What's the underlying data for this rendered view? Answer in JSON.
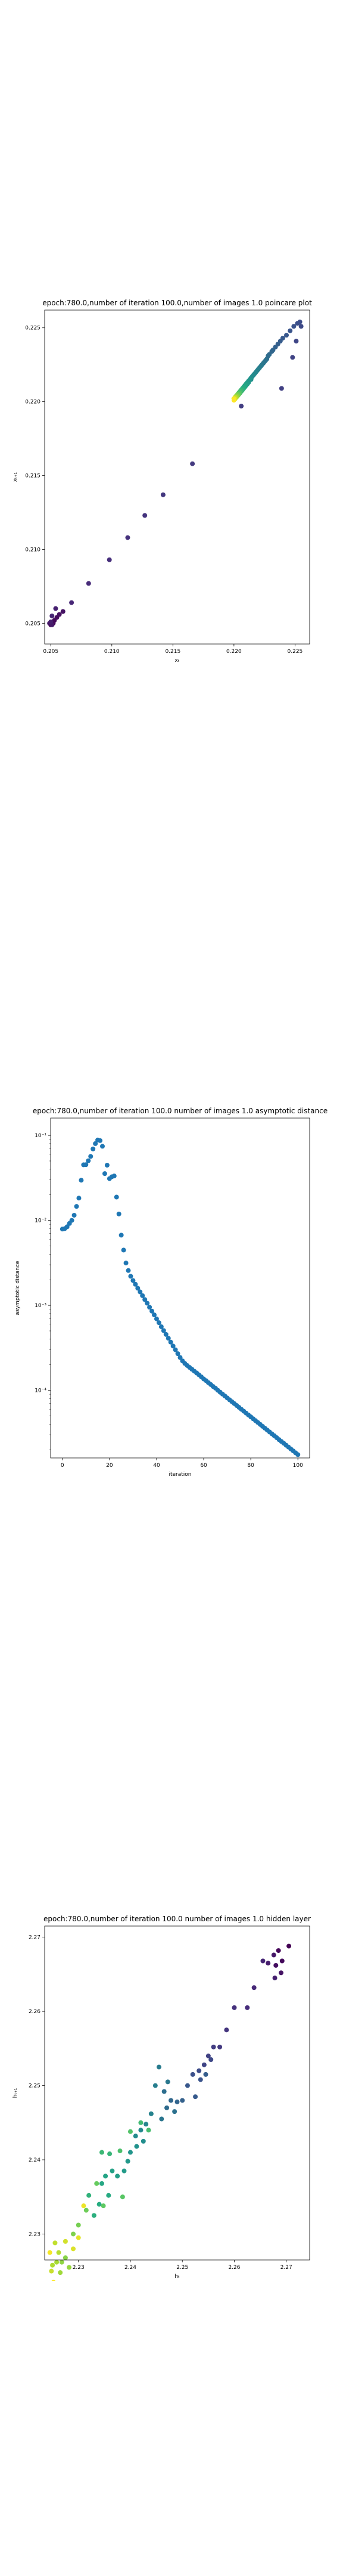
{
  "figure": {
    "background": "#ffffff"
  },
  "chart_data": [
    {
      "type": "scatter",
      "title": "epoch:780.0,number of iteration 100.0,number of images 1.0 poincare plot",
      "xlabel": "xₜ",
      "ylabel": "xₜ₊₁",
      "xlim": [
        0.2045,
        0.2262
      ],
      "ylim": [
        0.2036,
        0.2262
      ],
      "xticks": [
        0.205,
        0.21,
        0.215,
        0.22,
        0.225
      ],
      "yticks": [
        0.205,
        0.21,
        0.215,
        0.22,
        0.225
      ],
      "xtick_labels": [
        "0.205",
        "0.210",
        "0.215",
        "0.220",
        "0.225"
      ],
      "ytick_labels": [
        "0.205",
        "0.210",
        "0.215",
        "0.220",
        "0.225"
      ],
      "colormap": "viridis",
      "color_by": "iteration",
      "grid": false,
      "points": [
        {
          "x": 0.205,
          "y": 0.2049
        },
        {
          "x": 0.2052,
          "y": 0.205
        },
        {
          "x": 0.2053,
          "y": 0.2052
        },
        {
          "x": 0.2055,
          "y": 0.2054
        },
        {
          "x": 0.2057,
          "y": 0.2056
        },
        {
          "x": 0.206,
          "y": 0.2058
        },
        {
          "x": 0.2049,
          "y": 0.205
        },
        {
          "x": 0.2051,
          "y": 0.2049
        },
        {
          "x": 0.205,
          "y": 0.2051
        },
        {
          "x": 0.2054,
          "y": 0.206
        },
        {
          "x": 0.2051,
          "y": 0.2055
        },
        {
          "x": 0.2067,
          "y": 0.2064
        },
        {
          "x": 0.2081,
          "y": 0.2077
        },
        {
          "x": 0.2098,
          "y": 0.2093
        },
        {
          "x": 0.2113,
          "y": 0.2108
        },
        {
          "x": 0.2127,
          "y": 0.2123
        },
        {
          "x": 0.2142,
          "y": 0.2137
        },
        {
          "x": 0.2166,
          "y": 0.2158
        },
        {
          "x": 0.2206,
          "y": 0.2197
        },
        {
          "x": 0.2239,
          "y": 0.2209
        },
        {
          "x": 0.2248,
          "y": 0.223
        },
        {
          "x": 0.2251,
          "y": 0.2241
        },
        {
          "x": 0.2255,
          "y": 0.2251
        },
        {
          "x": 0.2254,
          "y": 0.2254
        },
        {
          "x": 0.2252,
          "y": 0.2253
        },
        {
          "x": 0.2249,
          "y": 0.2251
        },
        {
          "x": 0.2246,
          "y": 0.2248
        },
        {
          "x": 0.2243,
          "y": 0.2245
        },
        {
          "x": 0.224,
          "y": 0.2243
        },
        {
          "x": 0.2238,
          "y": 0.2241
        },
        {
          "x": 0.2236,
          "y": 0.2239
        },
        {
          "x": 0.2234,
          "y": 0.2237
        },
        {
          "x": 0.2232,
          "y": 0.2235
        },
        {
          "x": 0.2231,
          "y": 0.2234
        },
        {
          "x": 0.2229,
          "y": 0.2232
        },
        {
          "x": 0.2228,
          "y": 0.2231
        },
        {
          "x": 0.2227,
          "y": 0.2229
        },
        {
          "x": 0.2226,
          "y": 0.2228
        },
        {
          "x": 0.2225,
          "y": 0.2227
        },
        {
          "x": 0.2224,
          "y": 0.2226
        },
        {
          "x": 0.2223,
          "y": 0.2225
        },
        {
          "x": 0.2222,
          "y": 0.2224
        },
        {
          "x": 0.2221,
          "y": 0.2223
        },
        {
          "x": 0.222,
          "y": 0.2222
        },
        {
          "x": 0.2219,
          "y": 0.2221
        },
        {
          "x": 0.2218,
          "y": 0.222
        },
        {
          "x": 0.2217,
          "y": 0.2219
        },
        {
          "x": 0.2216,
          "y": 0.2218
        },
        {
          "x": 0.2215,
          "y": 0.2217
        },
        {
          "x": 0.2214,
          "y": 0.2216
        },
        {
          "x": 0.2214,
          "y": 0.2215
        },
        {
          "x": 0.2213,
          "y": 0.2215
        },
        {
          "x": 0.2212,
          "y": 0.2214
        },
        {
          "x": 0.2212,
          "y": 0.2213
        },
        {
          "x": 0.2211,
          "y": 0.2213
        },
        {
          "x": 0.2211,
          "y": 0.2212
        },
        {
          "x": 0.221,
          "y": 0.2212
        },
        {
          "x": 0.221,
          "y": 0.2211
        },
        {
          "x": 0.2209,
          "y": 0.2211
        },
        {
          "x": 0.2209,
          "y": 0.221
        },
        {
          "x": 0.2208,
          "y": 0.221
        },
        {
          "x": 0.2208,
          "y": 0.2209
        },
        {
          "x": 0.2207,
          "y": 0.2209
        },
        {
          "x": 0.2207,
          "y": 0.2208
        },
        {
          "x": 0.2207,
          "y": 0.2208
        },
        {
          "x": 0.2206,
          "y": 0.2208
        },
        {
          "x": 0.2206,
          "y": 0.2207
        },
        {
          "x": 0.2206,
          "y": 0.2207
        },
        {
          "x": 0.2205,
          "y": 0.2207
        },
        {
          "x": 0.2205,
          "y": 0.2206
        },
        {
          "x": 0.2205,
          "y": 0.2206
        },
        {
          "x": 0.2205,
          "y": 0.2206
        },
        {
          "x": 0.2204,
          "y": 0.2206
        },
        {
          "x": 0.2204,
          "y": 0.2205
        },
        {
          "x": 0.2204,
          "y": 0.2205
        },
        {
          "x": 0.2204,
          "y": 0.2205
        },
        {
          "x": 0.2203,
          "y": 0.2205
        },
        {
          "x": 0.2203,
          "y": 0.2205
        },
        {
          "x": 0.2203,
          "y": 0.2204
        },
        {
          "x": 0.2203,
          "y": 0.2204
        },
        {
          "x": 0.2203,
          "y": 0.2204
        },
        {
          "x": 0.2202,
          "y": 0.2204
        },
        {
          "x": 0.2202,
          "y": 0.2204
        },
        {
          "x": 0.2202,
          "y": 0.2204
        },
        {
          "x": 0.2202,
          "y": 0.2203
        },
        {
          "x": 0.2202,
          "y": 0.2203
        },
        {
          "x": 0.2202,
          "y": 0.2203
        },
        {
          "x": 0.2201,
          "y": 0.2203
        },
        {
          "x": 0.2201,
          "y": 0.2203
        },
        {
          "x": 0.2201,
          "y": 0.2203
        },
        {
          "x": 0.2201,
          "y": 0.2203
        },
        {
          "x": 0.2201,
          "y": 0.2202
        },
        {
          "x": 0.2201,
          "y": 0.2202
        },
        {
          "x": 0.2201,
          "y": 0.2202
        },
        {
          "x": 0.22,
          "y": 0.2202
        },
        {
          "x": 0.22,
          "y": 0.2202
        },
        {
          "x": 0.22,
          "y": 0.2202
        },
        {
          "x": 0.22,
          "y": 0.2202
        },
        {
          "x": 0.22,
          "y": 0.2202
        },
        {
          "x": 0.22,
          "y": 0.2201
        }
      ]
    },
    {
      "type": "scatter",
      "title": "epoch:780.0,number of iteration 100.0  number of images 1.0 asymptotic distance",
      "xlabel": "iteration",
      "ylabel": "asymptotic distance",
      "yscale": "log",
      "xlim": [
        -5,
        105
      ],
      "ylim": [
        1.6e-05,
        0.16
      ],
      "xticks": [
        0,
        20,
        40,
        60,
        80,
        100
      ],
      "xtick_labels": [
        "0",
        "20",
        "40",
        "60",
        "80",
        "100"
      ],
      "yticks": [
        0.0001,
        0.001,
        0.01,
        0.1
      ],
      "ytick_labels": [
        "10⁻⁴",
        "10⁻³",
        "10⁻²",
        "10⁻¹"
      ],
      "color": "#1f77b4",
      "grid": false,
      "x": [
        0,
        1,
        2,
        3,
        4,
        5,
        6,
        7,
        8,
        9,
        10,
        11,
        12,
        13,
        14,
        15,
        16,
        17,
        18,
        19,
        20,
        21,
        22,
        23,
        24,
        25,
        26,
        27,
        28,
        29,
        30,
        31,
        32,
        33,
        34,
        35,
        36,
        37,
        38,
        39,
        40,
        41,
        42,
        43,
        44,
        45,
        46,
        47,
        48,
        49,
        50,
        51,
        52,
        53,
        54,
        55,
        56,
        57,
        58,
        59,
        60,
        61,
        62,
        63,
        64,
        65,
        66,
        67,
        68,
        69,
        70,
        71,
        72,
        73,
        74,
        75,
        76,
        77,
        78,
        79,
        80,
        81,
        82,
        83,
        84,
        85,
        86,
        87,
        88,
        89,
        90,
        91,
        92,
        93,
        94,
        95,
        96,
        97,
        98,
        99,
        100
      ],
      "y": [
        0.0079,
        0.008,
        0.0084,
        0.0092,
        0.01,
        0.0115,
        0.0146,
        0.0183,
        0.0297,
        0.0451,
        0.0452,
        0.0503,
        0.0566,
        0.0693,
        0.08,
        0.0883,
        0.0869,
        0.0745,
        0.0355,
        0.0446,
        0.031,
        0.0326,
        0.0333,
        0.0188,
        0.0119,
        0.0067,
        0.00447,
        0.00315,
        0.00257,
        0.0022,
        0.00196,
        0.00177,
        0.00159,
        0.00144,
        0.0013,
        0.00117,
        0.00106,
        0.00095,
        0.000856,
        0.000772,
        0.000694,
        0.000625,
        0.00056,
        0.000505,
        0.000455,
        0.00041,
        0.000369,
        0.000332,
        0.0003,
        0.00027,
        0.000243,
        0.000222,
        0.000207,
        0.000196,
        0.000186,
        0.000177,
        0.000168,
        0.00016,
        0.000152,
        0.000144,
        0.000136,
        0.00013,
        0.000123,
        0.000117,
        0.000111,
        0.000106,
        0.0001,
        9.5e-05,
        9.02e-05,
        8.57e-05,
        8.14e-05,
        7.73e-05,
        7.34e-05,
        6.98e-05,
        6.63e-05,
        6.3e-05,
        5.98e-05,
        5.68e-05,
        5.4e-05,
        5.13e-05,
        4.87e-05,
        4.63e-05,
        4.4e-05,
        4.18e-05,
        3.97e-05,
        3.77e-05,
        3.58e-05,
        3.4e-05,
        3.23e-05,
        3.07e-05,
        2.92e-05,
        2.77e-05,
        2.63e-05,
        2.5e-05,
        2.38e-05,
        2.26e-05,
        2.15e-05,
        2.04e-05,
        1.94e-05,
        1.84e-05,
        1.75e-05
      ]
    },
    {
      "type": "scatter",
      "title": "epoch:780.0,number of iteration 100.0  number of images 1.0 hidden layer",
      "xlabel": "hₜ",
      "ylabel": "hₜ₊₁",
      "xlim": [
        2.2235,
        2.2745
      ],
      "ylim": [
        2.2265,
        2.2715
      ],
      "xticks": [
        2.23,
        2.24,
        2.25,
        2.26,
        2.27
      ],
      "yticks": [
        2.23,
        2.24,
        2.25,
        2.26,
        2.27
      ],
      "xtick_labels": [
        "2.23",
        "2.24",
        "2.25",
        "2.26",
        "2.27"
      ],
      "ytick_labels": [
        "2.23",
        "2.24",
        "2.25",
        "2.26",
        "2.27"
      ],
      "colormap": "viridis",
      "color_by": "iteration",
      "grid": false,
      "points": [
        {
          "x": 2.2705,
          "y": 2.2688
        },
        {
          "x": 2.2685,
          "y": 2.2682
        },
        {
          "x": 2.2692,
          "y": 2.2668
        },
        {
          "x": 2.268,
          "y": 2.2662
        },
        {
          "x": 2.269,
          "y": 2.2652
        },
        {
          "x": 2.2676,
          "y": 2.2676
        },
        {
          "x": 2.2665,
          "y": 2.2665
        },
        {
          "x": 2.2678,
          "y": 2.2645
        },
        {
          "x": 2.2655,
          "y": 2.2668
        },
        {
          "x": 2.2638,
          "y": 2.2632
        },
        {
          "x": 2.2625,
          "y": 2.2605
        },
        {
          "x": 2.26,
          "y": 2.2605
        },
        {
          "x": 2.2585,
          "y": 2.2575
        },
        {
          "x": 2.2572,
          "y": 2.2552
        },
        {
          "x": 2.256,
          "y": 2.2552
        },
        {
          "x": 2.255,
          "y": 2.254
        },
        {
          "x": 2.2542,
          "y": 2.2528
        },
        {
          "x": 2.2555,
          "y": 2.2535
        },
        {
          "x": 2.2532,
          "y": 2.252
        },
        {
          "x": 2.252,
          "y": 2.2515
        },
        {
          "x": 2.2535,
          "y": 2.2508
        },
        {
          "x": 2.251,
          "y": 2.25
        },
        {
          "x": 2.2525,
          "y": 2.2485
        },
        {
          "x": 2.2545,
          "y": 2.2515
        },
        {
          "x": 2.25,
          "y": 2.248
        },
        {
          "x": 2.249,
          "y": 2.2478
        },
        {
          "x": 2.2478,
          "y": 2.248
        },
        {
          "x": 2.247,
          "y": 2.247
        },
        {
          "x": 2.2465,
          "y": 2.2492
        },
        {
          "x": 2.2485,
          "y": 2.2465
        },
        {
          "x": 2.246,
          "y": 2.2455
        },
        {
          "x": 2.2472,
          "y": 2.2505
        },
        {
          "x": 2.2455,
          "y": 2.2525
        },
        {
          "x": 2.2448,
          "y": 2.25
        },
        {
          "x": 2.244,
          "y": 2.2462
        },
        {
          "x": 2.243,
          "y": 2.2448
        },
        {
          "x": 2.242,
          "y": 2.244
        },
        {
          "x": 2.241,
          "y": 2.2432
        },
        {
          "x": 2.2425,
          "y": 2.2425
        },
        {
          "x": 2.2412,
          "y": 2.2418
        },
        {
          "x": 2.24,
          "y": 2.241
        },
        {
          "x": 2.2395,
          "y": 2.2398
        },
        {
          "x": 2.2388,
          "y": 2.2385
        },
        {
          "x": 2.2375,
          "y": 2.2378
        },
        {
          "x": 2.2365,
          "y": 2.2385
        },
        {
          "x": 2.2352,
          "y": 2.2378
        },
        {
          "x": 2.2345,
          "y": 2.2368
        },
        {
          "x": 2.2358,
          "y": 2.2352
        },
        {
          "x": 2.234,
          "y": 2.234
        },
        {
          "x": 2.233,
          "y": 2.2325
        },
        {
          "x": 2.232,
          "y": 2.2352
        },
        {
          "x": 2.236,
          "y": 2.2408
        },
        {
          "x": 2.2345,
          "y": 2.241
        },
        {
          "x": 2.242,
          "y": 2.245
        },
        {
          "x": 2.2435,
          "y": 2.244
        },
        {
          "x": 2.238,
          "y": 2.2412
        },
        {
          "x": 2.24,
          "y": 2.2438
        },
        {
          "x": 2.2385,
          "y": 2.235
        },
        {
          "x": 2.2348,
          "y": 2.2338
        },
        {
          "x": 2.2335,
          "y": 2.2368
        },
        {
          "x": 2.2315,
          "y": 2.2332
        },
        {
          "x": 2.23,
          "y": 2.2312
        },
        {
          "x": 2.229,
          "y": 2.23
        },
        {
          "x": 2.2275,
          "y": 2.2268
        },
        {
          "x": 2.2268,
          "y": 2.2262
        },
        {
          "x": 2.2282,
          "y": 2.2255
        },
        {
          "x": 2.2265,
          "y": 2.2248
        },
        {
          "x": 2.2258,
          "y": 2.2262
        },
        {
          "x": 2.225,
          "y": 2.2258
        },
        {
          "x": 2.2262,
          "y": 2.2275
        },
        {
          "x": 2.2255,
          "y": 2.2288
        },
        {
          "x": 2.2248,
          "y": 2.225
        },
        {
          "x": 2.2275,
          "y": 2.229
        },
        {
          "x": 2.229,
          "y": 2.228
        },
        {
          "x": 2.23,
          "y": 2.2295
        },
        {
          "x": 2.231,
          "y": 2.2338
        },
        {
          "x": 2.2245,
          "y": 2.2275
        },
        {
          "x": 2.2252,
          "y": 2.2235
        }
      ]
    }
  ]
}
